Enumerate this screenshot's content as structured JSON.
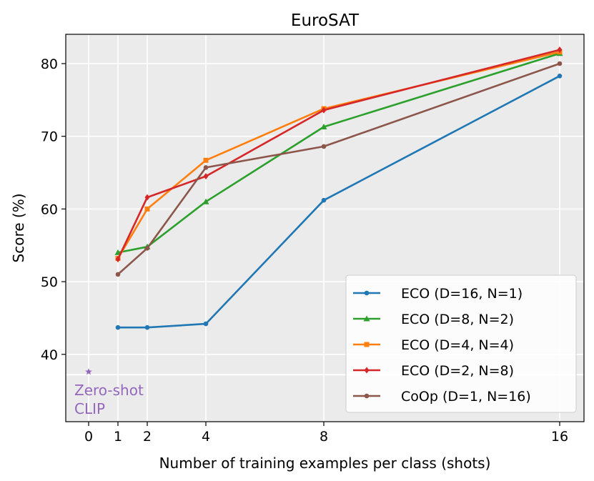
{
  "chart_data": {
    "type": "line",
    "title": "EuroSAT",
    "xlabel": "Number of training examples per class (shots)",
    "ylabel": "Score (%)",
    "x_ticks": [
      "0",
      "1",
      "2",
      "4",
      "8",
      "16"
    ],
    "y_ticks": [
      "40",
      "50",
      "60",
      "70",
      "80"
    ],
    "ylim": [
      31,
      84
    ],
    "grid": true,
    "legend_position": "bottom-right",
    "x": [
      1,
      2,
      4,
      8,
      16
    ],
    "series": [
      {
        "name": "ECO (D=16, N=1)",
        "color": "#1f77b4",
        "marker": "circle",
        "values": [
          43.7,
          43.7,
          44.2,
          61.2,
          78.3
        ]
      },
      {
        "name": "ECO (D=8, N=2)",
        "color": "#2ca02c",
        "marker": "triangle",
        "values": [
          54.0,
          54.8,
          61.0,
          71.3,
          81.4
        ]
      },
      {
        "name": "ECO (D=4, N=4)",
        "color": "#ff7f0e",
        "marker": "square",
        "values": [
          53.2,
          60.0,
          66.7,
          73.8,
          81.6
        ]
      },
      {
        "name": "ECO (D=2, N=8)",
        "color": "#d62728",
        "marker": "diamond",
        "values": [
          53.1,
          61.6,
          64.5,
          73.6,
          81.9
        ]
      },
      {
        "name": "CoOp (D=1, N=16)",
        "color": "#8c564b",
        "marker": "circle",
        "values": [
          51.0,
          54.6,
          65.7,
          68.6,
          80.0
        ]
      }
    ],
    "zero_shot": {
      "x": 0,
      "y": 37.6,
      "color": "#9467bd",
      "marker": "star",
      "label_line1": "Zero-shot",
      "label_line2": "CLIP",
      "hline_y": 37.6
    }
  }
}
